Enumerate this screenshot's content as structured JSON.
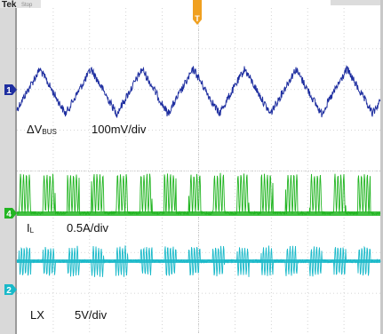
{
  "top_left_label": "Tek",
  "top_left_sub": "Stop",
  "trigger_marker": "T",
  "chart_data": {
    "type": "line",
    "title": "",
    "grid": true,
    "time_divisions": 10,
    "vertical_divisions": 8,
    "series": [
      {
        "marker": "1",
        "name_main": "ΔV",
        "name_sub": "BUS",
        "scale": "100mV/div",
        "color": "#1f2fa0",
        "waveform": "triangle",
        "cycles": 7.1,
        "peak_to_peak_mV": 110
      },
      {
        "marker": "4",
        "name_main": "I",
        "name_sub": "L",
        "scale": "0.5A/div",
        "color": "#22b522",
        "waveform": "switching bursts",
        "burst_count": 15
      },
      {
        "marker": "2",
        "name_main": "LX",
        "name_sub": "",
        "scale": "5V/div",
        "color": "#19b9c9",
        "waveform": "switching bursts",
        "burst_count": 15
      }
    ]
  }
}
